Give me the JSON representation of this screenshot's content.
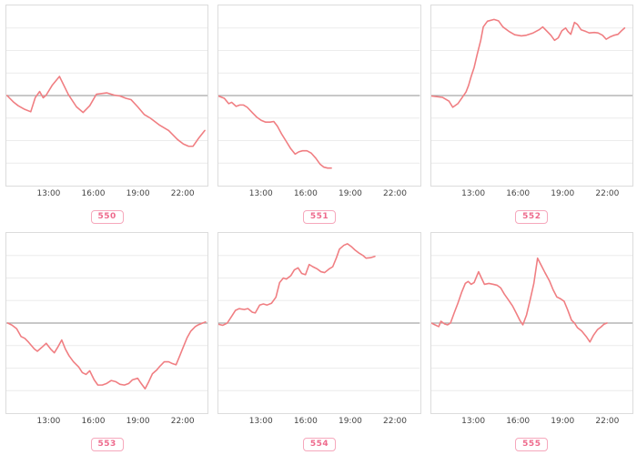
{
  "colors": {
    "line": "#f07e82",
    "baseline": "#a6a6a6",
    "gridline": "#ececec",
    "plot_border": "#dcdcdc",
    "tick_text": "#444444",
    "badge_text": "#ee6a8c",
    "badge_border": "#f6a8bc",
    "background": "#ffffff"
  },
  "chart_data": {
    "type": "line",
    "layout": {
      "grid_rows": 2,
      "grid_cols": 3,
      "horizontal_gridlines": true,
      "vertical_gridlines": false,
      "y_tick_labels_visible": false,
      "legend": "none"
    },
    "x_axis": {
      "tick_labels": [
        "13:00",
        "16:00",
        "19:00",
        "22:00"
      ],
      "tick_hours": [
        13,
        16,
        19,
        22
      ],
      "xlim_hours": [
        10.1,
        23.75
      ]
    },
    "y_axis": {
      "ylim": [
        -4,
        4
      ],
      "gridline_step": 1,
      "baseline": 0,
      "units": "unlabeled gridline units relative to gray baseline (no y tick labels shown)"
    },
    "charts": [
      {
        "id": "550",
        "badge": "550",
        "points": [
          [
            10.15,
            0
          ],
          [
            10.6,
            -0.3
          ],
          [
            10.9,
            -0.45
          ],
          [
            11.3,
            -0.6
          ],
          [
            11.75,
            -0.72
          ],
          [
            12.05,
            -0.1
          ],
          [
            12.35,
            0.18
          ],
          [
            12.6,
            -0.1
          ],
          [
            12.8,
            0.02
          ],
          [
            13.2,
            0.45
          ],
          [
            13.7,
            0.85
          ],
          [
            14.3,
            0.05
          ],
          [
            14.85,
            -0.5
          ],
          [
            15.3,
            -0.75
          ],
          [
            15.75,
            -0.45
          ],
          [
            16.2,
            0.06
          ],
          [
            16.9,
            0.12
          ],
          [
            17.4,
            0.02
          ],
          [
            17.8,
            -0.02
          ],
          [
            18.2,
            -0.12
          ],
          [
            18.55,
            -0.18
          ],
          [
            19.0,
            -0.5
          ],
          [
            19.45,
            -0.85
          ],
          [
            19.85,
            -1.0
          ],
          [
            20.45,
            -1.3
          ],
          [
            21.1,
            -1.55
          ],
          [
            21.7,
            -1.95
          ],
          [
            22.1,
            -2.15
          ],
          [
            22.45,
            -2.25
          ],
          [
            22.75,
            -2.25
          ],
          [
            23.1,
            -1.92
          ],
          [
            23.55,
            -1.55
          ]
        ]
      },
      {
        "id": "551",
        "badge": "551",
        "points": [
          [
            10.1,
            -0.02
          ],
          [
            10.5,
            -0.12
          ],
          [
            10.8,
            -0.36
          ],
          [
            11.0,
            -0.3
          ],
          [
            11.3,
            -0.48
          ],
          [
            11.55,
            -0.42
          ],
          [
            11.8,
            -0.42
          ],
          [
            12.05,
            -0.52
          ],
          [
            12.4,
            -0.76
          ],
          [
            12.7,
            -0.96
          ],
          [
            13.0,
            -1.1
          ],
          [
            13.3,
            -1.18
          ],
          [
            13.6,
            -1.18
          ],
          [
            13.85,
            -1.15
          ],
          [
            14.1,
            -1.36
          ],
          [
            14.4,
            -1.72
          ],
          [
            14.7,
            -2.04
          ],
          [
            15.0,
            -2.36
          ],
          [
            15.3,
            -2.6
          ],
          [
            15.55,
            -2.5
          ],
          [
            15.8,
            -2.45
          ],
          [
            16.1,
            -2.45
          ],
          [
            16.4,
            -2.56
          ],
          [
            16.7,
            -2.78
          ],
          [
            17.0,
            -3.05
          ],
          [
            17.25,
            -3.18
          ],
          [
            17.5,
            -3.22
          ],
          [
            17.75,
            -3.22
          ]
        ]
      },
      {
        "id": "552",
        "badge": "552",
        "points": [
          [
            10.1,
            -0.02
          ],
          [
            10.85,
            -0.08
          ],
          [
            11.3,
            -0.25
          ],
          [
            11.55,
            -0.52
          ],
          [
            11.9,
            -0.36
          ],
          [
            12.2,
            -0.08
          ],
          [
            12.45,
            0.16
          ],
          [
            12.62,
            0.45
          ],
          [
            12.8,
            0.85
          ],
          [
            13.0,
            1.25
          ],
          [
            13.2,
            1.8
          ],
          [
            13.45,
            2.45
          ],
          [
            13.62,
            3.05
          ],
          [
            13.9,
            3.3
          ],
          [
            14.35,
            3.38
          ],
          [
            14.65,
            3.32
          ],
          [
            14.95,
            3.05
          ],
          [
            15.35,
            2.85
          ],
          [
            15.75,
            2.7
          ],
          [
            16.2,
            2.65
          ],
          [
            16.55,
            2.68
          ],
          [
            17.0,
            2.78
          ],
          [
            17.4,
            2.92
          ],
          [
            17.65,
            3.05
          ],
          [
            17.9,
            2.88
          ],
          [
            18.2,
            2.68
          ],
          [
            18.45,
            2.45
          ],
          [
            18.7,
            2.56
          ],
          [
            18.95,
            2.88
          ],
          [
            19.2,
            3.0
          ],
          [
            19.35,
            2.85
          ],
          [
            19.55,
            2.72
          ],
          [
            19.8,
            3.25
          ],
          [
            20.0,
            3.16
          ],
          [
            20.25,
            2.92
          ],
          [
            20.55,
            2.85
          ],
          [
            20.8,
            2.78
          ],
          [
            21.15,
            2.8
          ],
          [
            21.4,
            2.78
          ],
          [
            21.7,
            2.68
          ],
          [
            21.95,
            2.5
          ],
          [
            22.2,
            2.6
          ],
          [
            22.5,
            2.68
          ],
          [
            22.75,
            2.72
          ],
          [
            23.0,
            2.88
          ],
          [
            23.2,
            3.0
          ]
        ]
      },
      {
        "id": "553",
        "badge": "553",
        "points": [
          [
            10.2,
            0.0
          ],
          [
            10.5,
            -0.1
          ],
          [
            10.8,
            -0.25
          ],
          [
            11.1,
            -0.6
          ],
          [
            11.35,
            -0.68
          ],
          [
            11.6,
            -0.85
          ],
          [
            12.0,
            -1.15
          ],
          [
            12.2,
            -1.25
          ],
          [
            12.55,
            -1.05
          ],
          [
            12.8,
            -0.9
          ],
          [
            13.1,
            -1.15
          ],
          [
            13.35,
            -1.32
          ],
          [
            13.6,
            -1.05
          ],
          [
            13.85,
            -0.75
          ],
          [
            14.1,
            -1.15
          ],
          [
            14.35,
            -1.45
          ],
          [
            14.65,
            -1.72
          ],
          [
            15.0,
            -1.95
          ],
          [
            15.25,
            -2.2
          ],
          [
            15.5,
            -2.28
          ],
          [
            15.75,
            -2.12
          ],
          [
            16.05,
            -2.52
          ],
          [
            16.3,
            -2.75
          ],
          [
            16.6,
            -2.75
          ],
          [
            16.9,
            -2.68
          ],
          [
            17.2,
            -2.55
          ],
          [
            17.5,
            -2.6
          ],
          [
            17.8,
            -2.72
          ],
          [
            18.1,
            -2.75
          ],
          [
            18.4,
            -2.68
          ],
          [
            18.65,
            -2.52
          ],
          [
            19.0,
            -2.45
          ],
          [
            19.2,
            -2.65
          ],
          [
            19.5,
            -2.92
          ],
          [
            19.75,
            -2.6
          ],
          [
            20.0,
            -2.25
          ],
          [
            20.3,
            -2.08
          ],
          [
            20.5,
            -1.92
          ],
          [
            20.8,
            -1.72
          ],
          [
            21.1,
            -1.72
          ],
          [
            21.35,
            -1.8
          ],
          [
            21.6,
            -1.85
          ],
          [
            21.85,
            -1.45
          ],
          [
            22.1,
            -1.05
          ],
          [
            22.35,
            -0.65
          ],
          [
            22.6,
            -0.36
          ],
          [
            22.9,
            -0.16
          ],
          [
            23.1,
            -0.08
          ],
          [
            23.4,
            0.0
          ],
          [
            23.6,
            0.05
          ]
        ]
      },
      {
        "id": "554",
        "badge": "554",
        "points": [
          [
            10.1,
            -0.05
          ],
          [
            10.4,
            -0.1
          ],
          [
            10.7,
            0.0
          ],
          [
            11.0,
            0.3
          ],
          [
            11.25,
            0.56
          ],
          [
            11.5,
            0.64
          ],
          [
            11.85,
            0.6
          ],
          [
            12.1,
            0.64
          ],
          [
            12.4,
            0.48
          ],
          [
            12.6,
            0.45
          ],
          [
            12.9,
            0.8
          ],
          [
            13.15,
            0.85
          ],
          [
            13.4,
            0.8
          ],
          [
            13.7,
            0.88
          ],
          [
            14.0,
            1.15
          ],
          [
            14.25,
            1.8
          ],
          [
            14.5,
            2.0
          ],
          [
            14.7,
            1.95
          ],
          [
            15.0,
            2.1
          ],
          [
            15.25,
            2.36
          ],
          [
            15.5,
            2.45
          ],
          [
            15.75,
            2.2
          ],
          [
            16.0,
            2.15
          ],
          [
            16.25,
            2.6
          ],
          [
            16.5,
            2.5
          ],
          [
            16.8,
            2.4
          ],
          [
            17.05,
            2.28
          ],
          [
            17.3,
            2.24
          ],
          [
            17.6,
            2.4
          ],
          [
            17.85,
            2.5
          ],
          [
            18.1,
            2.9
          ],
          [
            18.3,
            3.28
          ],
          [
            18.6,
            3.45
          ],
          [
            18.85,
            3.52
          ],
          [
            19.1,
            3.4
          ],
          [
            19.35,
            3.25
          ],
          [
            19.6,
            3.12
          ],
          [
            19.9,
            3.0
          ],
          [
            20.1,
            2.88
          ],
          [
            20.4,
            2.9
          ],
          [
            20.7,
            2.96
          ]
        ]
      },
      {
        "id": "555",
        "badge": "555",
        "points": [
          [
            10.1,
            0.0
          ],
          [
            10.35,
            -0.08
          ],
          [
            10.6,
            -0.16
          ],
          [
            10.75,
            0.08
          ],
          [
            11.0,
            -0.04
          ],
          [
            11.2,
            -0.08
          ],
          [
            11.4,
            0.0
          ],
          [
            11.65,
            0.45
          ],
          [
            11.9,
            0.88
          ],
          [
            12.15,
            1.36
          ],
          [
            12.4,
            1.76
          ],
          [
            12.6,
            1.85
          ],
          [
            12.8,
            1.72
          ],
          [
            13.0,
            1.8
          ],
          [
            13.3,
            2.28
          ],
          [
            13.5,
            2.0
          ],
          [
            13.7,
            1.72
          ],
          [
            14.0,
            1.76
          ],
          [
            14.3,
            1.72
          ],
          [
            14.55,
            1.68
          ],
          [
            14.8,
            1.56
          ],
          [
            15.05,
            1.28
          ],
          [
            15.3,
            1.05
          ],
          [
            15.6,
            0.76
          ],
          [
            15.85,
            0.45
          ],
          [
            16.1,
            0.12
          ],
          [
            16.3,
            -0.08
          ],
          [
            16.55,
            0.36
          ],
          [
            16.8,
            1.05
          ],
          [
            17.05,
            1.76
          ],
          [
            17.3,
            2.88
          ],
          [
            17.55,
            2.56
          ],
          [
            17.8,
            2.24
          ],
          [
            18.1,
            1.88
          ],
          [
            18.35,
            1.48
          ],
          [
            18.6,
            1.16
          ],
          [
            18.85,
            1.08
          ],
          [
            19.1,
            0.97
          ],
          [
            19.35,
            0.57
          ],
          [
            19.6,
            0.13
          ],
          [
            19.8,
            0.0
          ],
          [
            20.0,
            -0.2
          ],
          [
            20.3,
            -0.36
          ],
          [
            20.6,
            -0.6
          ],
          [
            20.85,
            -0.84
          ],
          [
            21.1,
            -0.53
          ],
          [
            21.35,
            -0.3
          ],
          [
            21.6,
            -0.17
          ],
          [
            21.8,
            -0.05
          ],
          [
            22.0,
            0.0
          ]
        ]
      }
    ]
  }
}
